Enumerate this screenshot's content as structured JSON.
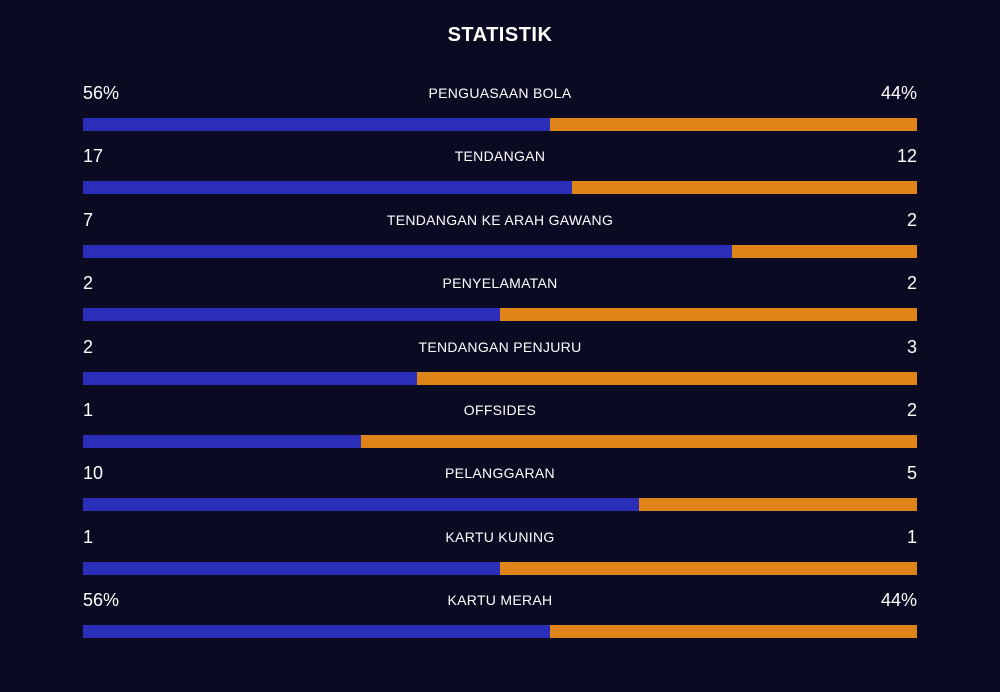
{
  "title": "STATISTIK",
  "colors": {
    "background": "#0a0a23",
    "home_bar": "#2b2eb8",
    "away_bar": "#de8419"
  },
  "stats": [
    {
      "label": "PENGUASAAN BOLA",
      "left": "56%",
      "right": "44%",
      "home_share": 0.56
    },
    {
      "label": "TENDANGAN",
      "left": "17",
      "right": "12",
      "home_share": 0.586
    },
    {
      "label": "TENDANGAN KE ARAH GAWANG",
      "left": "7",
      "right": "2",
      "home_share": 0.778
    },
    {
      "label": "PENYELAMATAN",
      "left": "2",
      "right": "2",
      "home_share": 0.5
    },
    {
      "label": "TENDANGAN PENJURU",
      "left": "2",
      "right": "3",
      "home_share": 0.4
    },
    {
      "label": "OFFSIDES",
      "left": "1",
      "right": "2",
      "home_share": 0.333
    },
    {
      "label": "PELANGGARAN",
      "left": "10",
      "right": "5",
      "home_share": 0.667
    },
    {
      "label": "KARTU KUNING",
      "left": "1",
      "right": "1",
      "home_share": 0.5
    },
    {
      "label": "KARTU MERAH",
      "left": "56%",
      "right": "44%",
      "home_share": 0.56
    }
  ]
}
